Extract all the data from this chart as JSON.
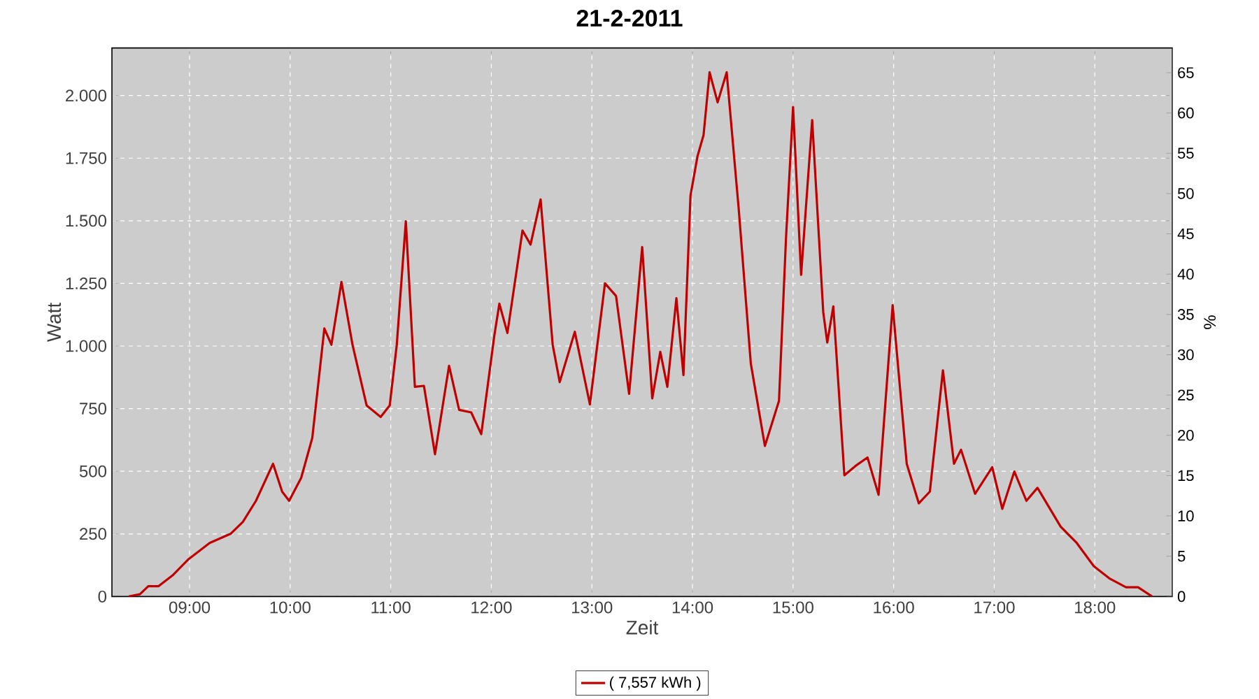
{
  "chart_data": {
    "type": "line",
    "title": "21-2-2011",
    "xlabel": "Zeit",
    "ylabel": "Watt",
    "y2label": "%",
    "xlim": [
      8.228,
      18.77
    ],
    "ylim": [
      0,
      2190
    ],
    "y2lim": [
      0,
      68.07
    ],
    "xticks": [
      {
        "value": 9,
        "label": "09:00"
      },
      {
        "value": 10,
        "label": "10:00"
      },
      {
        "value": 11,
        "label": "11:00"
      },
      {
        "value": 12,
        "label": "12:00"
      },
      {
        "value": 13,
        "label": "13:00"
      },
      {
        "value": 14,
        "label": "14:00"
      },
      {
        "value": 15,
        "label": "15:00"
      },
      {
        "value": 16,
        "label": "16:00"
      },
      {
        "value": 17,
        "label": "17:00"
      },
      {
        "value": 18,
        "label": "18:00"
      }
    ],
    "yticks": [
      0,
      250,
      500,
      750,
      {
        "value": 1000,
        "label": "1.000"
      },
      {
        "value": 1250,
        "label": "1.250"
      },
      {
        "value": 1500,
        "label": "1.500"
      },
      {
        "value": 1750,
        "label": "1.750"
      },
      {
        "value": 2000,
        "label": "2.000"
      }
    ],
    "y2ticks": [
      0,
      5,
      10,
      15,
      20,
      25,
      30,
      35,
      40,
      45,
      50,
      55,
      60,
      65
    ],
    "grid": true,
    "legend": "bottom",
    "marker": "none",
    "line_style": "solid",
    "series": [
      {
        "name": "( 7,557 kWh )",
        "color": "#c00000",
        "x": [
          8.395,
          8.506,
          8.59,
          8.69,
          8.83,
          8.99,
          9.2,
          9.41,
          9.53,
          9.66,
          9.83,
          9.92,
          9.99,
          10.11,
          10.22,
          10.34,
          10.41,
          10.51,
          10.62,
          10.76,
          10.9,
          10.99,
          11.06,
          11.15,
          11.24,
          11.33,
          11.44,
          11.58,
          11.68,
          11.8,
          11.9,
          12.03,
          12.08,
          12.16,
          12.31,
          12.39,
          12.49,
          12.61,
          12.68,
          12.83,
          12.98,
          13.13,
          13.24,
          13.37,
          13.5,
          13.6,
          13.68,
          13.75,
          13.84,
          13.91,
          13.98,
          14.05,
          14.11,
          14.17,
          14.25,
          14.34,
          14.46,
          14.58,
          14.72,
          14.86,
          14.93,
          15.0,
          15.08,
          15.19,
          15.3,
          15.34,
          15.4,
          15.51,
          15.62,
          15.74,
          15.85,
          15.99,
          16.13,
          16.25,
          16.36,
          16.49,
          16.6,
          16.67,
          16.81,
          16.98,
          17.08,
          17.2,
          17.32,
          17.43,
          17.66,
          17.82,
          17.99,
          18.15,
          18.31,
          18.43,
          18.57
        ],
        "values": [
          0,
          9,
          41,
          41,
          84,
          149,
          214,
          251,
          298,
          382,
          530,
          419,
          382,
          474,
          633,
          1070,
          1005,
          1256,
          1005,
          763,
          717,
          763,
          1005,
          1498,
          837,
          841,
          568,
          921,
          745,
          735,
          648,
          1042,
          1169,
          1052,
          1461,
          1405,
          1585,
          1005,
          856,
          1057,
          767,
          1250,
          1200,
          809,
          1395,
          791,
          977,
          837,
          1191,
          884,
          1600,
          1758,
          1842,
          2093,
          1973,
          2093,
          1545,
          930,
          601,
          781,
          1433,
          1954,
          1284,
          1902,
          1135,
          1014,
          1158,
          484,
          521,
          555,
          406,
          1163,
          530,
          372,
          419,
          903,
          530,
          586,
          410,
          516,
          350,
          499,
          382,
          434,
          279,
          214,
          121,
          71,
          37,
          37,
          0
        ]
      }
    ]
  }
}
